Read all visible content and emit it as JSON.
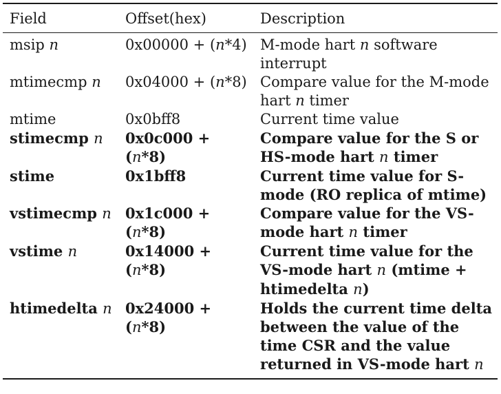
{
  "header": {
    "field": "Field",
    "offset": "Offset(hex)",
    "description": "Description"
  },
  "rows": [
    {
      "bold": false,
      "field": [
        "msip ",
        "n"
      ],
      "offset": [
        "0x00000 + (",
        "n",
        "*4)"
      ],
      "description": [
        "M-mode hart ",
        "n",
        " software interrupt"
      ]
    },
    {
      "bold": false,
      "field": [
        "mtimecmp ",
        "n"
      ],
      "offset": [
        "0x04000 + (",
        "n",
        "*8)"
      ],
      "description": [
        "Compare value for the M-mode hart ",
        "n",
        " timer"
      ]
    },
    {
      "bold": false,
      "field": [
        "mtime"
      ],
      "offset": [
        "0x0bff8"
      ],
      "description": [
        "Current time value"
      ]
    },
    {
      "bold": true,
      "field": [
        "stimecmp ",
        "n"
      ],
      "offset": [
        "0x0c000 + (",
        "n",
        "*8)"
      ],
      "description": [
        "Compare value for the S or HS-mode hart ",
        "n",
        " timer"
      ]
    },
    {
      "bold": true,
      "field": [
        "stime"
      ],
      "offset": [
        "0x1bff8"
      ],
      "description": [
        "Current time value for S-mode (RO replica of mtime)"
      ]
    },
    {
      "bold": true,
      "field": [
        "vstimecmp ",
        "n"
      ],
      "offset": [
        "0x1c000 + (",
        "n",
        "*8)"
      ],
      "description": [
        "Compare value for the VS-mode hart ",
        "n",
        " timer"
      ]
    },
    {
      "bold": true,
      "field": [
        "vstime ",
        "n"
      ],
      "offset": [
        "0x14000 + (",
        "n",
        "*8)"
      ],
      "description": [
        "Current time value for the VS-mode hart ",
        "n",
        " (mtime + htimedelta ",
        "n",
        ")"
      ]
    },
    {
      "bold": true,
      "field": [
        "htimedelta ",
        "n"
      ],
      "offset": [
        "0x24000 + (",
        "n",
        "*8)"
      ],
      "description": [
        "Holds the current time delta between the value of the time CSR and the value returned in VS-mode hart ",
        "n"
      ]
    }
  ]
}
